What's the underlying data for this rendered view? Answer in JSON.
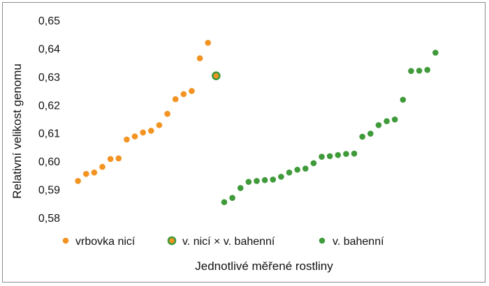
{
  "chart_data": {
    "type": "scatter",
    "title": "",
    "xlabel": "Jednotlivé měřené rostliny",
    "ylabel": "Relativní velikost genomu",
    "ylim": [
      0.58,
      0.65
    ],
    "yticks": [
      "0,58",
      "0,59",
      "0,60",
      "0,61",
      "0,62",
      "0,63",
      "0,64",
      "0,65"
    ],
    "grid": false,
    "legend_position": "bottom",
    "series": [
      {
        "name": "vrbovka nicí",
        "color": "#f39322",
        "marker": "circle",
        "x": [
          1,
          2,
          3,
          4,
          5,
          6,
          7,
          8,
          9,
          10,
          11,
          12,
          13,
          14,
          15,
          16,
          17
        ],
        "y": [
          0.593,
          0.5955,
          0.596,
          0.598,
          0.6008,
          0.601,
          0.6077,
          0.6088,
          0.6102,
          0.6108,
          0.6128,
          0.6168,
          0.622,
          0.6238,
          0.6249,
          0.6365,
          0.642
        ]
      },
      {
        "name": "v. nicí × v. bahenní",
        "color": "#f39322",
        "edgecolor": "#3f9a3a",
        "marker": "circle",
        "x": [
          18
        ],
        "y": [
          0.6303
        ]
      },
      {
        "name": "v. bahenní",
        "color": "#3f9a3a",
        "marker": "circle",
        "x": [
          19,
          20,
          21,
          22,
          23,
          24,
          25,
          26,
          27,
          28,
          29,
          30,
          31,
          32,
          33,
          34,
          35,
          36,
          37,
          38,
          39,
          40,
          41,
          42,
          43,
          44
        ],
        "y": [
          0.5855,
          0.587,
          0.5905,
          0.5927,
          0.593,
          0.5933,
          0.5935,
          0.5945,
          0.596,
          0.597,
          0.5974,
          0.5993,
          0.6016,
          0.6018,
          0.6022,
          0.6026,
          0.6027,
          0.6087,
          0.6098,
          0.6128,
          0.6142,
          0.6148,
          0.6218,
          0.632,
          0.6321,
          0.6324
        ]
      }
    ],
    "extra_point": {
      "series": "v. bahenní",
      "x": 45,
      "y": 0.6385
    }
  }
}
